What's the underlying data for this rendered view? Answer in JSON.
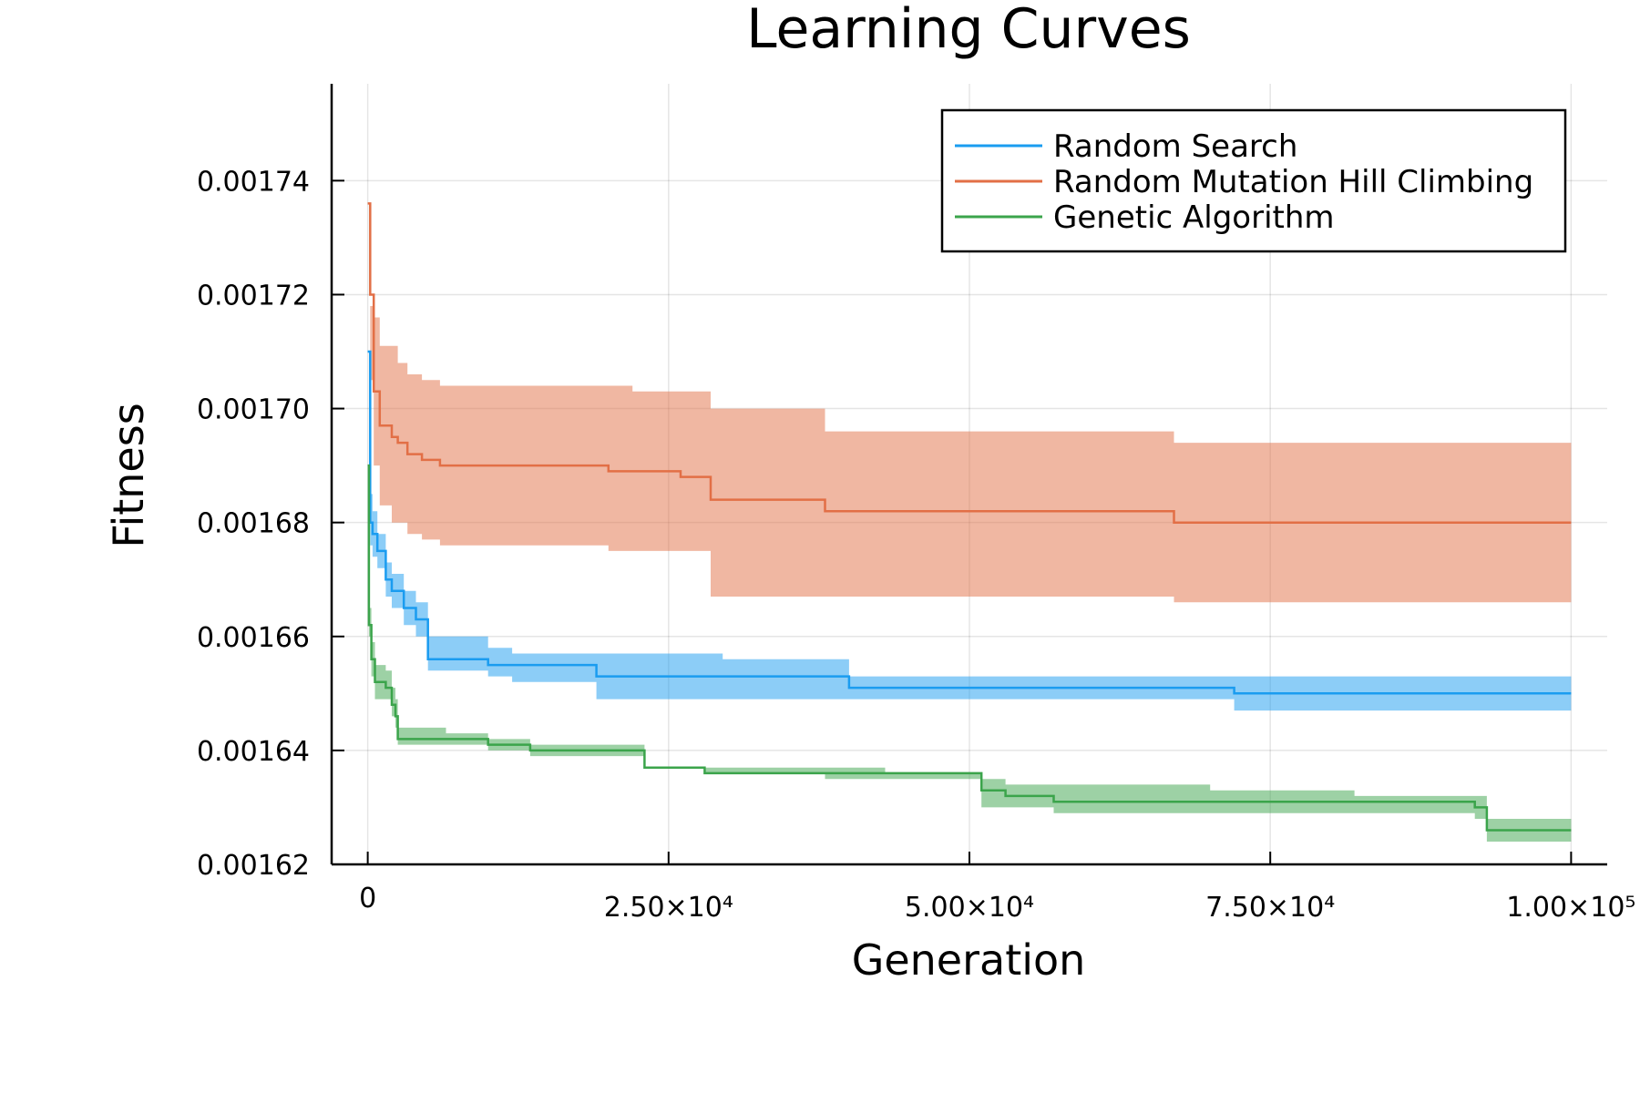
{
  "chart_data": {
    "type": "line",
    "title": "Learning Curves",
    "xlabel": "Generation",
    "ylabel": "Fitness",
    "xlim": [
      -3000,
      103000
    ],
    "ylim": [
      0.00162,
      0.001757
    ],
    "grid": true,
    "legend_position": "top-right",
    "x_ticks": [
      {
        "value": 0,
        "label": "0"
      },
      {
        "value": 25000,
        "label": "2.50×10⁴"
      },
      {
        "value": 50000,
        "label": "5.00×10⁴"
      },
      {
        "value": 75000,
        "label": "7.50×10⁴"
      },
      {
        "value": 100000,
        "label": "1.00×10⁵"
      }
    ],
    "y_ticks": [
      {
        "value": 0.00162,
        "label": "0.00162"
      },
      {
        "value": 0.00164,
        "label": "0.00164"
      },
      {
        "value": 0.00166,
        "label": "0.00166"
      },
      {
        "value": 0.00168,
        "label": "0.00168"
      },
      {
        "value": 0.0017,
        "label": "0.00170"
      },
      {
        "value": 0.00172,
        "label": "0.00172"
      },
      {
        "value": 0.00174,
        "label": "0.00174"
      }
    ],
    "series": [
      {
        "name": "Random Mutation Hill Climbing",
        "color": "#e26f46",
        "band_color": "#e26f46",
        "x": [
          0,
          200,
          500,
          1000,
          2000,
          2500,
          3300,
          4500,
          6000,
          19000,
          20000,
          22000,
          26000,
          28500,
          38000,
          40000,
          67000,
          70000,
          100000
        ],
        "y": [
          0.001736,
          0.00172,
          0.001703,
          0.001697,
          0.001695,
          0.001694,
          0.001692,
          0.001691,
          0.00169,
          0.00169,
          0.001689,
          0.001689,
          0.001688,
          0.001684,
          0.001682,
          0.001682,
          0.00168,
          0.00168,
          0.00168
        ],
        "upper": [
          0.001736,
          0.001718,
          0.001716,
          0.001711,
          0.001711,
          0.001708,
          0.001706,
          0.001705,
          0.001704,
          0.001704,
          0.001704,
          0.001703,
          0.001703,
          0.0017,
          0.001696,
          0.001696,
          0.001694,
          0.001694,
          0.001694
        ],
        "lower": [
          0.001736,
          0.001705,
          0.00169,
          0.001683,
          0.00168,
          0.00168,
          0.001678,
          0.001677,
          0.001676,
          0.001676,
          0.001675,
          0.001675,
          0.001675,
          0.001667,
          0.001667,
          0.001667,
          0.001666,
          0.001666,
          0.001666
        ]
      },
      {
        "name": "Random Search",
        "color": "#1a9cf0",
        "band_color": "#1a9cf0",
        "x": [
          0,
          200,
          400,
          800,
          1500,
          2000,
          3000,
          4000,
          5000,
          10000,
          12000,
          19000,
          29500,
          40000,
          66000,
          72000,
          100000
        ],
        "y": [
          0.00171,
          0.00168,
          0.001678,
          0.001675,
          0.00167,
          0.001668,
          0.001665,
          0.001663,
          0.001656,
          0.001655,
          0.001655,
          0.001653,
          0.001653,
          0.001651,
          0.001651,
          0.00165,
          0.00165
        ],
        "upper": [
          0.00171,
          0.001685,
          0.001682,
          0.001678,
          0.001673,
          0.001671,
          0.001668,
          0.001666,
          0.00166,
          0.001658,
          0.001657,
          0.001657,
          0.001656,
          0.001653,
          0.001653,
          0.001653,
          0.001653
        ],
        "lower": [
          0.00171,
          0.001676,
          0.001674,
          0.001672,
          0.001667,
          0.001665,
          0.001662,
          0.00166,
          0.001654,
          0.001653,
          0.001652,
          0.001649,
          0.001649,
          0.001649,
          0.001649,
          0.001647,
          0.001647
        ]
      },
      {
        "name": "Genetic Algorithm",
        "color": "#3ba44b",
        "band_color": "#3ba44b",
        "x": [
          0,
          100,
          300,
          600,
          1500,
          2000,
          2300,
          2500,
          6500,
          10000,
          13500,
          20000,
          23000,
          28000,
          38000,
          43000,
          51000,
          53000,
          57000,
          70000,
          82000,
          92000,
          93000,
          100000
        ],
        "y": [
          0.00169,
          0.001662,
          0.001656,
          0.001652,
          0.001651,
          0.001648,
          0.001646,
          0.001642,
          0.001642,
          0.001641,
          0.00164,
          0.00164,
          0.001637,
          0.001636,
          0.001636,
          0.001636,
          0.001633,
          0.001632,
          0.001631,
          0.001631,
          0.001631,
          0.00163,
          0.001626,
          0.001626
        ],
        "upper": [
          0.00169,
          0.001665,
          0.001659,
          0.001655,
          0.001654,
          0.001651,
          0.001649,
          0.001644,
          0.001643,
          0.001642,
          0.001641,
          0.001641,
          0.001637,
          0.001637,
          0.001637,
          0.001636,
          0.001635,
          0.001634,
          0.001634,
          0.001633,
          0.001632,
          0.001632,
          0.001628,
          0.001628
        ],
        "lower": [
          0.00169,
          0.00166,
          0.001653,
          0.001649,
          0.001649,
          0.001646,
          0.001644,
          0.001641,
          0.001641,
          0.00164,
          0.001639,
          0.001639,
          0.001637,
          0.001636,
          0.001635,
          0.001635,
          0.00163,
          0.00163,
          0.001629,
          0.001629,
          0.001629,
          0.001628,
          0.001624,
          0.001624
        ]
      }
    ]
  }
}
